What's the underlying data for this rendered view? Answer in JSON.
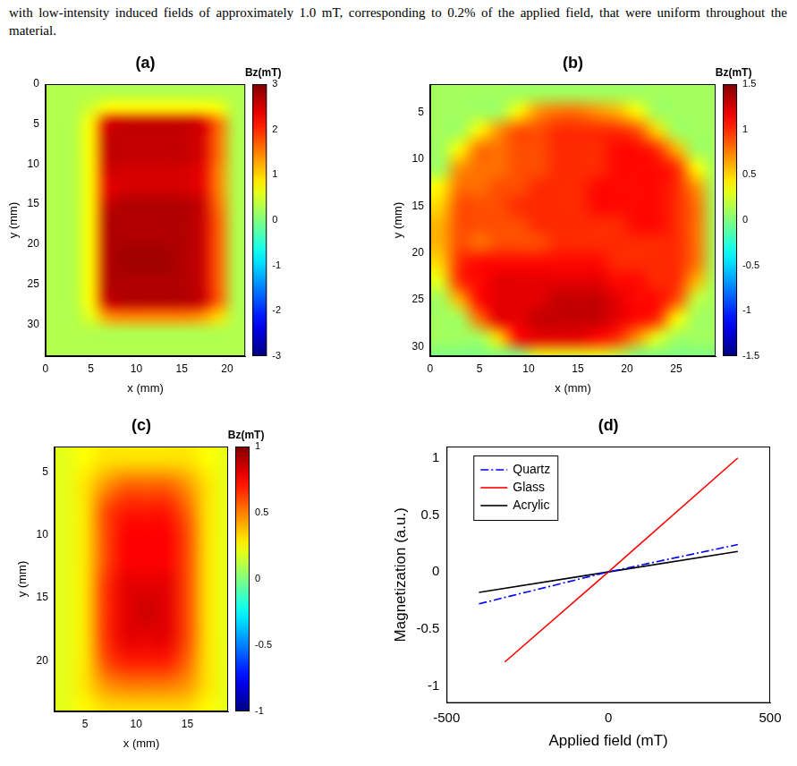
{
  "text": "with low-intensity induced fields of approximately 1.0 mT, corresponding to 0.2% of the applied field, that were uniform throughout the material.",
  "chart_data": [
    {
      "type": "heatmap",
      "title": "(a)",
      "x_label": "x (mm)",
      "y_label": "y (mm)",
      "xlim": [
        0,
        22
      ],
      "ylim": [
        0,
        34
      ],
      "xticks": [
        0,
        5,
        10,
        15,
        20
      ],
      "yticks": [
        0,
        5,
        10,
        15,
        20,
        25,
        30
      ],
      "grid": false,
      "x_edges": [
        0,
        2,
        4,
        6,
        8,
        10,
        12,
        14,
        16,
        18,
        20,
        22
      ],
      "y_edges": [
        0,
        2,
        4,
        6,
        8,
        10,
        12,
        14,
        16,
        18,
        20,
        22,
        24,
        26,
        28,
        30,
        32,
        34
      ],
      "cells": [
        [
          0.3,
          0.3,
          0.3,
          0.3,
          0.3,
          0.3,
          0.3,
          0.3,
          0.3,
          0.3,
          0.3
        ],
        [
          0.3,
          0.3,
          0.5,
          0.8,
          0.8,
          0.8,
          0.8,
          0.8,
          0.8,
          0.7,
          0.3
        ],
        [
          0.3,
          0.3,
          0.8,
          2.5,
          2.6,
          2.6,
          2.6,
          2.6,
          2.5,
          1.6,
          0.3
        ],
        [
          0.3,
          0.3,
          0.8,
          2.6,
          2.6,
          2.6,
          2.6,
          2.6,
          2.5,
          1.6,
          0.3
        ],
        [
          0.3,
          0.3,
          0.8,
          2.6,
          2.6,
          2.6,
          2.6,
          2.6,
          2.5,
          1.6,
          0.3
        ],
        [
          0.3,
          0.3,
          0.8,
          2.5,
          2.5,
          2.5,
          2.5,
          2.5,
          2.4,
          1.5,
          0.3
        ],
        [
          0.3,
          0.3,
          0.8,
          2.4,
          2.5,
          2.5,
          2.5,
          2.5,
          2.4,
          1.5,
          0.3
        ],
        [
          0.3,
          0.3,
          0.8,
          2.6,
          2.7,
          2.7,
          2.7,
          2.7,
          2.6,
          1.6,
          0.3
        ],
        [
          0.3,
          0.3,
          0.8,
          2.7,
          2.7,
          2.7,
          2.7,
          2.7,
          2.6,
          1.7,
          0.3
        ],
        [
          0.3,
          0.3,
          0.8,
          2.7,
          2.7,
          2.7,
          2.7,
          2.7,
          2.6,
          1.7,
          0.3
        ],
        [
          0.3,
          0.3,
          0.8,
          2.7,
          2.8,
          2.8,
          2.8,
          2.7,
          2.6,
          1.7,
          0.3
        ],
        [
          0.3,
          0.3,
          0.8,
          2.7,
          2.8,
          2.8,
          2.8,
          2.7,
          2.6,
          1.7,
          0.3
        ],
        [
          0.3,
          0.3,
          0.8,
          2.7,
          2.7,
          2.7,
          2.7,
          2.7,
          2.6,
          1.7,
          0.3
        ],
        [
          0.3,
          0.3,
          0.8,
          2.6,
          2.7,
          2.7,
          2.7,
          2.7,
          2.6,
          1.7,
          0.3
        ],
        [
          0.3,
          0.3,
          0.6,
          1.4,
          1.5,
          1.5,
          1.5,
          1.5,
          1.4,
          1.0,
          0.3
        ],
        [
          0.3,
          0.3,
          0.3,
          0.3,
          0.3,
          0.3,
          0.3,
          0.3,
          0.3,
          0.3,
          0.3
        ],
        [
          0.3,
          0.3,
          0.3,
          0.3,
          0.3,
          0.3,
          0.3,
          0.3,
          0.3,
          0.3,
          0.3
        ]
      ],
      "colorbar": {
        "label": "Bz(mT)",
        "range": [
          -3,
          3
        ],
        "ticks": [
          -3,
          -2,
          -1,
          0,
          1,
          2,
          3
        ]
      }
    },
    {
      "type": "heatmap",
      "title": "(b)",
      "x_label": "x (mm)",
      "y_label": "y (mm)",
      "xlim": [
        0,
        29
      ],
      "ylim": [
        2,
        31
      ],
      "xticks": [
        0,
        5,
        10,
        15,
        20,
        25
      ],
      "yticks": [
        5,
        10,
        15,
        20,
        25,
        30
      ],
      "grid": false,
      "x_edges": [
        0,
        2,
        4,
        6,
        8,
        10,
        12,
        14,
        16,
        18,
        20,
        22,
        24,
        26,
        28,
        30
      ],
      "y_edges": [
        2,
        4,
        6,
        8,
        10,
        12,
        14,
        16,
        18,
        20,
        22,
        24,
        26,
        28,
        30,
        32
      ],
      "cells": [
        [
          0.1,
          0.1,
          0.1,
          0.1,
          0.1,
          0.1,
          0.1,
          0.1,
          0.1,
          0.1,
          0.1,
          0.1,
          0.1,
          0.1,
          0.1
        ],
        [
          0.1,
          0.1,
          0.1,
          0.1,
          0.4,
          0.7,
          0.8,
          0.8,
          0.7,
          0.6,
          0.4,
          0.1,
          0.1,
          0.1,
          0.1
        ],
        [
          0.1,
          0.1,
          0.4,
          0.7,
          0.9,
          0.9,
          1.0,
          1.0,
          1.0,
          1.0,
          0.9,
          0.5,
          0.1,
          0.1,
          0.1
        ],
        [
          0.1,
          0.4,
          0.8,
          0.8,
          0.9,
          0.9,
          1.0,
          1.0,
          1.0,
          1.1,
          1.1,
          1.0,
          0.6,
          0.1,
          0.1
        ],
        [
          0.1,
          0.7,
          0.8,
          0.8,
          0.9,
          0.9,
          1.0,
          1.0,
          1.0,
          1.1,
          1.1,
          1.1,
          1.0,
          0.4,
          0.1
        ],
        [
          0.4,
          0.8,
          0.8,
          0.9,
          0.9,
          1.0,
          1.0,
          1.0,
          1.1,
          1.1,
          1.1,
          1.1,
          1.0,
          0.7,
          0.1
        ],
        [
          0.5,
          0.9,
          0.9,
          0.9,
          1.0,
          1.0,
          1.0,
          1.0,
          1.1,
          1.1,
          1.1,
          1.1,
          1.0,
          0.8,
          0.1
        ],
        [
          0.6,
          0.9,
          0.9,
          0.9,
          0.9,
          1.0,
          1.0,
          1.0,
          1.0,
          1.0,
          1.1,
          1.1,
          1.0,
          0.8,
          0.1
        ],
        [
          0.6,
          0.9,
          0.8,
          0.9,
          0.9,
          0.9,
          1.0,
          1.0,
          1.0,
          1.0,
          1.0,
          1.0,
          1.0,
          0.8,
          0.1
        ],
        [
          0.5,
          1.0,
          1.1,
          1.1,
          1.1,
          1.1,
          1.1,
          1.1,
          1.1,
          1.0,
          1.0,
          1.0,
          1.0,
          0.8,
          0.1
        ],
        [
          0.3,
          1.0,
          1.1,
          1.2,
          1.2,
          1.2,
          1.2,
          1.2,
          1.2,
          1.1,
          1.1,
          1.0,
          1.0,
          0.6,
          0.1
        ],
        [
          0.1,
          0.6,
          1.1,
          1.2,
          1.2,
          1.2,
          1.3,
          1.3,
          1.3,
          1.2,
          1.1,
          1.1,
          0.9,
          0.2,
          0.1
        ],
        [
          0.1,
          0.1,
          0.8,
          1.2,
          1.2,
          1.3,
          1.3,
          1.3,
          1.3,
          1.2,
          1.1,
          1.0,
          0.4,
          0.1,
          0.1
        ],
        [
          0.1,
          0.1,
          0.1,
          0.5,
          1.1,
          1.2,
          1.2,
          1.2,
          1.1,
          1.0,
          0.7,
          0.3,
          0.1,
          0.1,
          0.1
        ],
        [
          0.0,
          0.0,
          0.0,
          0.0,
          0.0,
          0.3,
          0.3,
          0.3,
          0.3,
          0.2,
          0.0,
          0.0,
          0.0,
          0.0,
          0.0
        ]
      ],
      "colorbar": {
        "label": "Bz(mT)",
        "range": [
          -1.5,
          1.5
        ],
        "ticks": [
          -1.5,
          -1,
          -0.5,
          0,
          0.5,
          1,
          1.5
        ]
      }
    },
    {
      "type": "heatmap",
      "title": "(c)",
      "x_label": "x (mm)",
      "y_label": "y (mm)",
      "xlim": [
        2,
        19
      ],
      "ylim": [
        3,
        24
      ],
      "xticks": [
        5,
        10,
        15
      ],
      "yticks": [
        5,
        10,
        15,
        20
      ],
      "grid": false,
      "x_edges": [
        2,
        4,
        6,
        8,
        10,
        12,
        14,
        16,
        18,
        20
      ],
      "y_edges": [
        3,
        5,
        7,
        9,
        11,
        13,
        15,
        17,
        19,
        21,
        23,
        25
      ],
      "cells": [
        [
          0.2,
          0.25,
          0.3,
          0.3,
          0.3,
          0.3,
          0.3,
          0.25,
          0.2
        ],
        [
          0.2,
          0.3,
          0.45,
          0.55,
          0.55,
          0.55,
          0.45,
          0.3,
          0.2
        ],
        [
          0.2,
          0.3,
          0.6,
          0.7,
          0.7,
          0.7,
          0.55,
          0.3,
          0.2
        ],
        [
          0.2,
          0.3,
          0.6,
          0.75,
          0.75,
          0.75,
          0.6,
          0.3,
          0.2
        ],
        [
          0.2,
          0.3,
          0.6,
          0.75,
          0.75,
          0.75,
          0.6,
          0.3,
          0.2
        ],
        [
          0.2,
          0.3,
          0.65,
          0.8,
          0.8,
          0.8,
          0.6,
          0.3,
          0.2
        ],
        [
          0.2,
          0.3,
          0.65,
          0.8,
          0.85,
          0.8,
          0.6,
          0.3,
          0.2
        ],
        [
          0.2,
          0.3,
          0.65,
          0.8,
          0.8,
          0.8,
          0.6,
          0.3,
          0.2
        ],
        [
          0.2,
          0.3,
          0.6,
          0.7,
          0.7,
          0.7,
          0.55,
          0.3,
          0.2
        ],
        [
          0.2,
          0.3,
          0.45,
          0.5,
          0.5,
          0.5,
          0.45,
          0.3,
          0.2
        ],
        [
          0.2,
          0.25,
          0.3,
          0.3,
          0.3,
          0.3,
          0.3,
          0.25,
          0.2
        ]
      ],
      "colorbar": {
        "label": "Bz(mT)",
        "range": [
          -1,
          1
        ],
        "ticks": [
          -1,
          -0.5,
          0,
          0.5,
          1
        ]
      }
    },
    {
      "type": "line",
      "title": "(d)",
      "x_label": "Applied field (mT)",
      "y_label": "Magnetization (a.u.)",
      "xlim": [
        -500,
        500
      ],
      "ylim": [
        -1.15,
        1.1
      ],
      "xticks": [
        -500,
        0,
        500
      ],
      "yticks": [
        -1,
        -0.5,
        0,
        0.5,
        1
      ],
      "grid": false,
      "legend": "top-left",
      "series": [
        {
          "name": "Quartz",
          "color": "#0000ff",
          "line_style": "dashdot",
          "x": [
            -400,
            0,
            400
          ],
          "values": [
            -0.28,
            0,
            0.24
          ]
        },
        {
          "name": "Glass",
          "color": "#ff0000",
          "line_style": "solid",
          "x": [
            -320,
            0,
            400
          ],
          "values": [
            -0.79,
            0,
            1.0
          ]
        },
        {
          "name": "Acrylic",
          "color": "#000000",
          "line_style": "solid",
          "x": [
            -400,
            0,
            400
          ],
          "values": [
            -0.18,
            0,
            0.18
          ]
        }
      ]
    }
  ]
}
